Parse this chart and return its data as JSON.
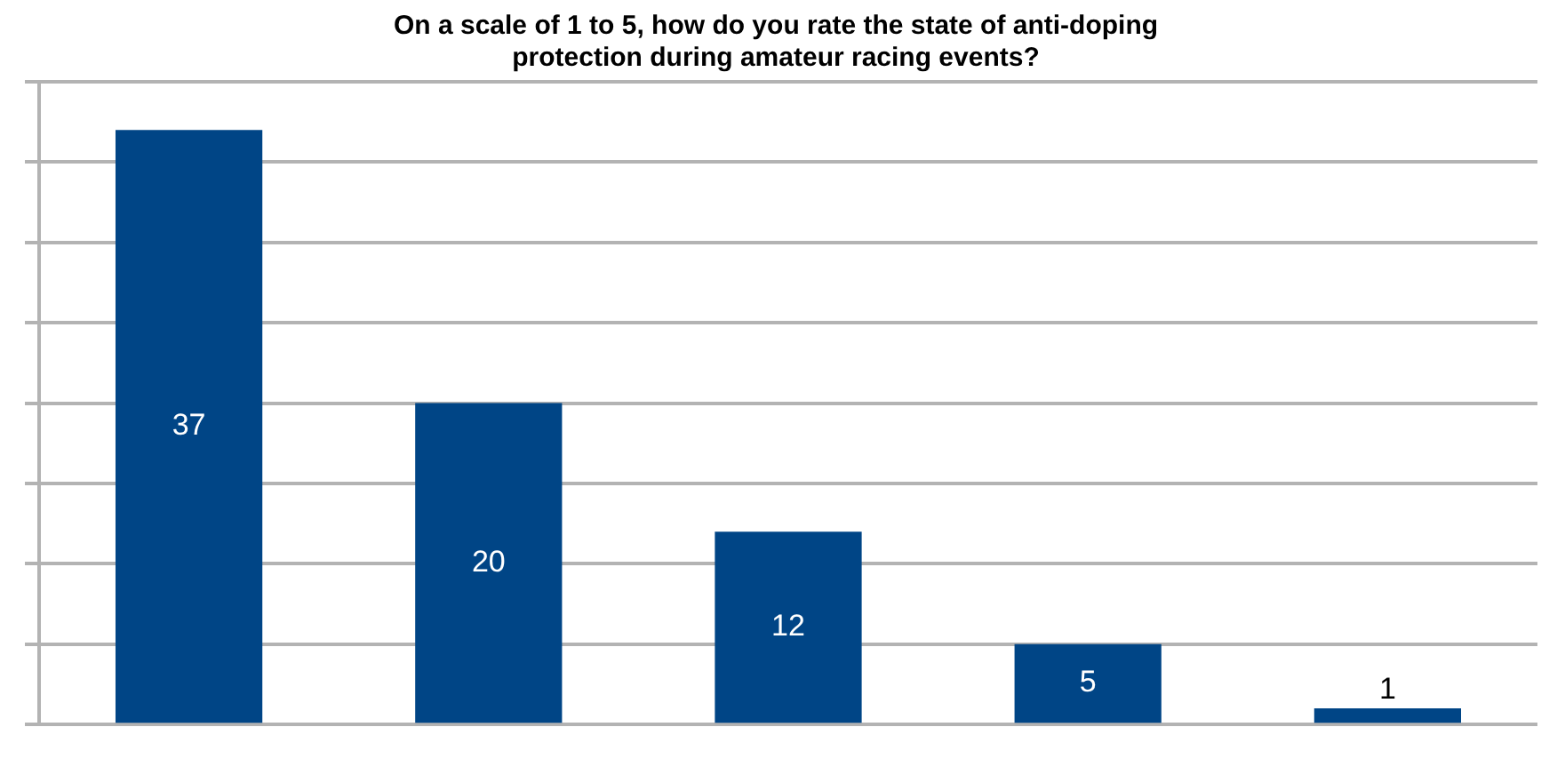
{
  "chart_data": {
    "type": "bar",
    "title": [
      "On a scale of 1 to 5, how do you rate the state of anti-doping",
      "protection during amateur racing events?"
    ],
    "categories": [
      null,
      null,
      null,
      null,
      null
    ],
    "values": [
      37,
      20,
      12,
      5,
      1
    ],
    "color": "#004586",
    "data_labels": true,
    "ylim": [
      0,
      40
    ],
    "yticks": [
      {
        "value": 0,
        "label": null
      },
      {
        "value": 5,
        "label": null
      },
      {
        "value": 10,
        "label": null
      },
      {
        "value": 15,
        "label": null
      },
      {
        "value": 20,
        "label": null
      },
      {
        "value": 25,
        "label": null
      },
      {
        "value": 30,
        "label": null
      },
      {
        "value": 35,
        "label": null
      },
      {
        "value": 40,
        "label": null
      }
    ],
    "grid": "y",
    "legend": false
  }
}
